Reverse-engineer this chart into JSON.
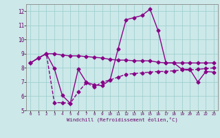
{
  "xlabel": "Windchill (Refroidissement éolien,°C)",
  "background_color": "#cce8e8",
  "line_color": "#880088",
  "grid_color": "#99cccc",
  "xlim": [
    -0.5,
    23.5
  ],
  "ylim": [
    5,
    12.5
  ],
  "yticks": [
    5,
    6,
    7,
    8,
    9,
    10,
    11,
    12
  ],
  "xticks": [
    0,
    1,
    2,
    3,
    4,
    5,
    6,
    7,
    8,
    9,
    10,
    11,
    12,
    13,
    14,
    15,
    16,
    17,
    18,
    19,
    20,
    21,
    22,
    23
  ],
  "series": [
    {
      "x": [
        0,
        1,
        2,
        3,
        4,
        5,
        6,
        7,
        8,
        9,
        10,
        11,
        12,
        13,
        14,
        15,
        16,
        17,
        18,
        19,
        20,
        21,
        22,
        23
      ],
      "y": [
        8.35,
        8.7,
        9.0,
        9.0,
        8.9,
        8.85,
        8.85,
        8.8,
        8.75,
        8.7,
        8.6,
        8.55,
        8.55,
        8.5,
        8.5,
        8.5,
        8.4,
        8.35,
        8.35,
        8.35,
        8.35,
        8.35,
        8.35,
        8.35
      ],
      "linestyle": "-"
    },
    {
      "x": [
        0,
        1,
        2,
        3,
        4,
        5,
        6,
        7,
        8,
        9,
        10,
        11,
        12,
        13,
        14,
        15,
        16,
        17,
        18,
        19,
        20,
        21,
        22,
        23
      ],
      "y": [
        8.35,
        8.7,
        9.0,
        7.95,
        6.05,
        5.5,
        7.9,
        7.0,
        6.8,
        6.75,
        7.15,
        9.35,
        11.4,
        11.55,
        11.7,
        12.15,
        10.65,
        8.35,
        8.35,
        7.9,
        7.9,
        7.0,
        7.75,
        7.7
      ],
      "linestyle": "-"
    },
    {
      "x": [
        0,
        1,
        2,
        3,
        4,
        5,
        6,
        7,
        8,
        9,
        10,
        11,
        12,
        13,
        14,
        15,
        16,
        17,
        18,
        19,
        20,
        21,
        22,
        23
      ],
      "y": [
        8.35,
        8.7,
        9.0,
        5.55,
        5.55,
        5.5,
        6.3,
        6.95,
        6.65,
        7.0,
        7.15,
        7.35,
        7.55,
        7.6,
        7.65,
        7.7,
        7.75,
        7.75,
        7.8,
        7.85,
        7.85,
        7.9,
        7.95,
        8.0
      ],
      "linestyle": "--"
    }
  ],
  "marker": "D",
  "markersize": 2.5,
  "linewidth": 1.0
}
